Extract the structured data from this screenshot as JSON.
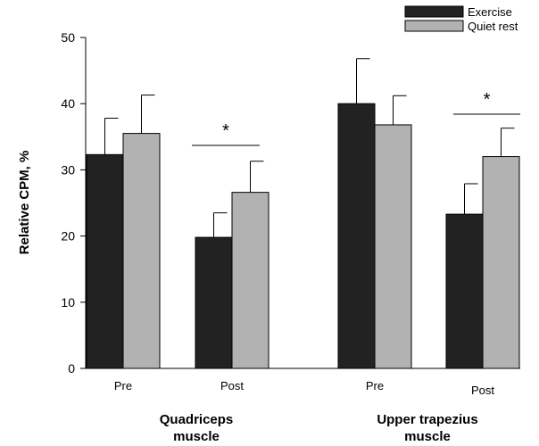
{
  "chart_data": {
    "type": "bar",
    "ylabel": "Relative CPM, %",
    "ylim": [
      0,
      50
    ],
    "yticks": [
      0,
      10,
      20,
      30,
      40,
      50
    ],
    "grid": false,
    "legend_position": "top-right",
    "groups": [
      {
        "label_lines": [
          "Quadriceps",
          "muscle"
        ],
        "categories": [
          "Pre",
          "Post"
        ],
        "significance": [
          "",
          "*"
        ]
      },
      {
        "label_lines": [
          "Upper trapezius",
          "muscle"
        ],
        "categories": [
          "Pre",
          "Post"
        ],
        "significance": [
          "",
          "*"
        ]
      }
    ],
    "series": [
      {
        "name": "Exercise",
        "color": "#222222",
        "values": [
          32.3,
          19.8,
          40.0,
          23.3
        ],
        "errors": [
          5.5,
          3.7,
          6.8,
          4.6
        ]
      },
      {
        "name": "Quiet rest",
        "color": "#b2b2b2",
        "values": [
          35.5,
          26.6,
          36.8,
          32.0
        ],
        "errors": [
          5.8,
          4.7,
          4.4,
          4.3
        ]
      }
    ]
  }
}
